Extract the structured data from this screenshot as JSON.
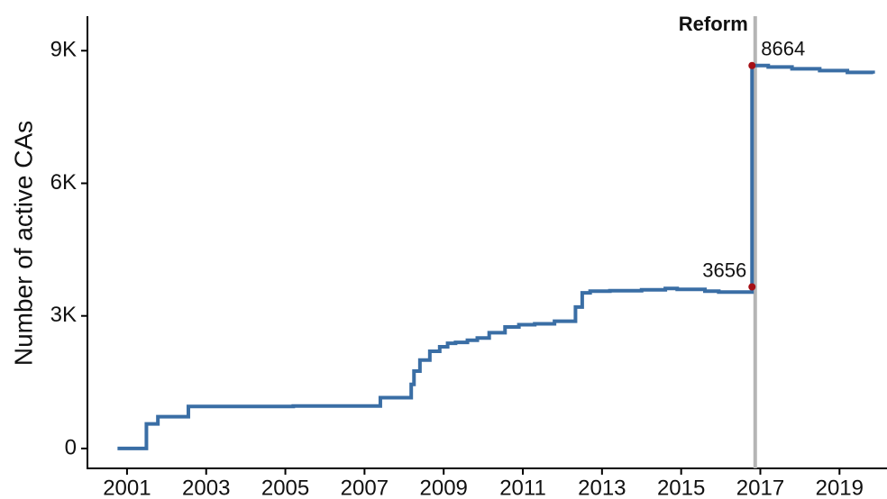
{
  "chart_data": {
    "type": "line",
    "step": "post",
    "y_label": "Number of active CAs",
    "series": [
      {
        "name": "Active CAs",
        "color": "#3a6ea5",
        "x": [
          2000.76,
          2001.49,
          2001.78,
          2002.55,
          2005.2,
          2007.4,
          2008.18,
          2008.25,
          2008.4,
          2008.65,
          2008.9,
          2009.1,
          2009.3,
          2009.6,
          2009.85,
          2010.15,
          2010.55,
          2010.9,
          2011.3,
          2011.8,
          2012.33,
          2012.5,
          2012.7,
          2013.2,
          2014.0,
          2014.6,
          2014.9,
          2015.6,
          2015.95,
          2016.79,
          2016.79,
          2017.2,
          2017.8,
          2018.5,
          2019.2,
          2019.85
        ],
        "values": [
          0,
          556,
          720,
          950,
          960,
          1150,
          1450,
          1750,
          2000,
          2200,
          2300,
          2380,
          2400,
          2450,
          2500,
          2620,
          2750,
          2800,
          2820,
          2880,
          3200,
          3520,
          3560,
          3570,
          3590,
          3620,
          3600,
          3560,
          3540,
          3656,
          8664,
          8630,
          8590,
          8550,
          8510,
          8480
        ]
      }
    ],
    "highlights": [
      {
        "x": 2016.79,
        "value": 3656
      },
      {
        "x": 2016.79,
        "value": 8664
      }
    ],
    "reform": {
      "x": 2016.87,
      "label": "Reform"
    },
    "xlim": [
      2000.0,
      2020.2
    ],
    "xticks": [
      2001,
      2003,
      2005,
      2007,
      2009,
      2011,
      2013,
      2015,
      2017,
      2019
    ],
    "ylim": [
      -450,
      9780
    ],
    "yticks": [
      0,
      {
        "value": 3000,
        "label": "3K"
      },
      {
        "value": 6000,
        "label": "6K"
      },
      {
        "value": 9000,
        "label": "9K"
      }
    ],
    "highlight_color": "#a50f15",
    "reform_color": "#b5b5b5"
  }
}
